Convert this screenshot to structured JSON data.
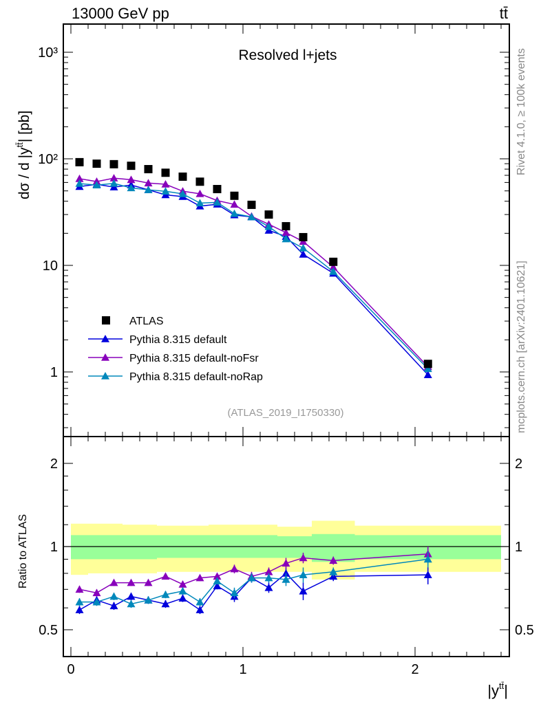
{
  "chart_data": {
    "type": "scatter",
    "header_left": "13000 GeV pp",
    "header_right": "tt̄",
    "title": "Resolved l+jets",
    "analysis_label": "(ATLAS_2019_I1750330)",
    "side_label_top": "Rivet 4.1.0, ≥ 100k events",
    "side_label_bottom": "mcplots.cern.ch [arXiv:2401.10621]",
    "ylabel": "dσ / d |y^tt̄| [pb]",
    "ylabel_parts": {
      "main": "dσ / d |y",
      "sup": "tt̄",
      "end": "| [pb]"
    },
    "xlabel_parts": {
      "main": "|y",
      "sup": "tt̄",
      "end": "|"
    },
    "ratio_ylabel": "Ratio to ATLAS",
    "yscale": "log",
    "ylim": [
      0.25,
      1800
    ],
    "xlim": [
      -0.05,
      2.55
    ],
    "ratio_ylim": [
      0.43,
      2.35
    ],
    "y_ticks": [
      {
        "v": 1000,
        "label": "10³"
      },
      {
        "v": 100,
        "label": "10²"
      },
      {
        "v": 10,
        "label": "10"
      },
      {
        "v": 1,
        "label": "1"
      }
    ],
    "x_ticks": [
      {
        "v": 0,
        "label": "0"
      },
      {
        "v": 1,
        "label": "1"
      },
      {
        "v": 2,
        "label": "2"
      }
    ],
    "ratio_ticks": [
      {
        "v": 2,
        "label": "2"
      },
      {
        "v": 1,
        "label": "1"
      },
      {
        "v": 0.5,
        "label": "0.5"
      }
    ],
    "bin_edges": [
      0,
      0.1,
      0.2,
      0.3,
      0.4,
      0.5,
      0.6,
      0.7,
      0.8,
      0.9,
      1.0,
      1.1,
      1.2,
      1.3,
      1.4,
      1.65,
      2.5
    ],
    "x": [
      0.05,
      0.15,
      0.25,
      0.35,
      0.45,
      0.55,
      0.65,
      0.75,
      0.85,
      0.95,
      1.05,
      1.15,
      1.25,
      1.35,
      1.525,
      2.075
    ],
    "atlas": {
      "name": "ATLAS",
      "color": "#000000",
      "values": [
        93,
        90,
        89,
        86,
        80,
        74,
        68,
        61,
        52,
        45,
        37,
        30,
        23.3,
        18.4,
        10.8,
        1.19
      ],
      "band_yellow": [
        [
          0.79,
          1.21
        ],
        [
          0.8,
          1.21
        ],
        [
          0.8,
          1.21
        ],
        [
          0.8,
          1.2
        ],
        [
          0.8,
          1.2
        ],
        [
          0.81,
          1.19
        ],
        [
          0.81,
          1.19
        ],
        [
          0.81,
          1.19
        ],
        [
          0.81,
          1.2
        ],
        [
          0.81,
          1.2
        ],
        [
          0.81,
          1.2
        ],
        [
          0.81,
          1.2
        ],
        [
          0.81,
          1.18
        ],
        [
          0.81,
          1.18
        ],
        [
          0.76,
          1.24
        ],
        [
          0.81,
          1.19
        ]
      ],
      "band_green": [
        [
          0.9,
          1.1
        ],
        [
          0.9,
          1.1
        ],
        [
          0.9,
          1.1
        ],
        [
          0.9,
          1.1
        ],
        [
          0.9,
          1.1
        ],
        [
          0.91,
          1.1
        ],
        [
          0.91,
          1.1
        ],
        [
          0.91,
          1.1
        ],
        [
          0.91,
          1.1
        ],
        [
          0.91,
          1.1
        ],
        [
          0.91,
          1.1
        ],
        [
          0.91,
          1.1
        ],
        [
          0.91,
          1.09
        ],
        [
          0.91,
          1.09
        ],
        [
          0.88,
          1.11
        ],
        [
          0.9,
          1.1
        ]
      ]
    },
    "series": [
      {
        "name": "Pythia 8.315 default",
        "color": "#0000dd",
        "ratio": [
          0.59,
          0.64,
          0.61,
          0.66,
          0.64,
          0.62,
          0.65,
          0.59,
          0.72,
          0.66,
          0.77,
          0.71,
          0.8,
          0.69,
          0.78,
          0.79
        ],
        "ratio_err": [
          0.02,
          0.02,
          0.02,
          0.02,
          0.02,
          0.02,
          0.02,
          0.02,
          0.02,
          0.03,
          0.03,
          0.03,
          0.04,
          0.05,
          0.03,
          0.06
        ]
      },
      {
        "name": "Pythia 8.315 default-noFsr",
        "color": "#8800bb",
        "ratio": [
          0.7,
          0.68,
          0.74,
          0.74,
          0.74,
          0.78,
          0.73,
          0.77,
          0.78,
          0.83,
          0.78,
          0.81,
          0.87,
          0.91,
          0.89,
          0.94
        ],
        "ratio_err": [
          0.02,
          0.02,
          0.02,
          0.02,
          0.02,
          0.02,
          0.02,
          0.02,
          0.02,
          0.03,
          0.03,
          0.03,
          0.04,
          0.04,
          0.03,
          0.06
        ]
      },
      {
        "name": "Pythia 8.315 default-noRap",
        "color": "#0088bb",
        "ratio": [
          0.63,
          0.63,
          0.66,
          0.62,
          0.64,
          0.67,
          0.69,
          0.63,
          0.75,
          0.68,
          0.77,
          0.77,
          0.76,
          0.79,
          0.81,
          0.9
        ],
        "ratio_err": [
          0.02,
          0.02,
          0.02,
          0.02,
          0.02,
          0.02,
          0.02,
          0.02,
          0.02,
          0.03,
          0.03,
          0.03,
          0.04,
          0.05,
          0.03,
          0.06
        ]
      }
    ]
  }
}
